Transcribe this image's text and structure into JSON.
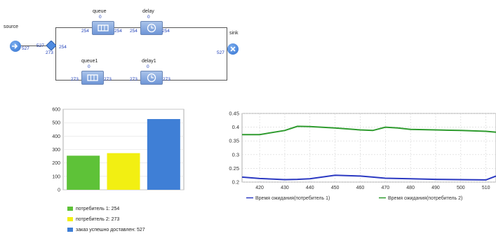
{
  "model": {
    "source": {
      "name": "source",
      "out": "527"
    },
    "select": {
      "in": "527",
      "out_top": "254",
      "out_bottom": "273"
    },
    "queue": {
      "name": "queue",
      "count": "0",
      "in": "254",
      "out": "254"
    },
    "delay": {
      "name": "delay",
      "count": "0",
      "in": "254",
      "out": "254"
    },
    "queue1": {
      "name": "queue1",
      "count": "0",
      "in": "273",
      "out": "273"
    },
    "delay1": {
      "name": "delay1",
      "count": "0",
      "in": "273",
      "out": "273"
    },
    "sink": {
      "name": "sink",
      "in": "527"
    }
  },
  "chart_data": [
    {
      "type": "bar",
      "categories": [
        "потребитель 1",
        "потребитель 2",
        "заказ успешно доставлен"
      ],
      "values": [
        254,
        273,
        527
      ],
      "colors": [
        "#5ec238",
        "#f2ef12",
        "#3f7fd6"
      ],
      "ylim": [
        0,
        600
      ],
      "yticks": [
        "0",
        "100",
        "200",
        "300",
        "400",
        "500",
        "600"
      ],
      "legend": [
        {
          "label": "потребитель 1: 254",
          "color": "#5ec238"
        },
        {
          "label": "потребитель 2: 273",
          "color": "#f2ef12"
        },
        {
          "label": "заказ успешно доставлен: 527",
          "color": "#3f7fd6"
        }
      ],
      "legend_position": "bottom"
    },
    {
      "type": "line",
      "x": [
        413,
        420,
        430,
        435,
        440,
        450,
        460,
        465,
        470,
        475,
        480,
        490,
        500,
        510,
        514
      ],
      "xlim": [
        413,
        514
      ],
      "ylim": [
        0.2,
        0.45
      ],
      "xticks": [
        "420",
        "430",
        "440",
        "450",
        "460",
        "470",
        "480",
        "490",
        "500",
        "510"
      ],
      "yticks": [
        "0.2",
        "0.25",
        "0.3",
        "0.35",
        "0.4",
        "0.45"
      ],
      "grid": true,
      "series": [
        {
          "name": "Время ожидания(потребитель 1)",
          "color": "#2b39c2",
          "values": [
            0.218,
            0.213,
            0.209,
            0.21,
            0.212,
            0.225,
            0.222,
            0.218,
            0.214,
            0.213,
            0.212,
            0.21,
            0.209,
            0.208,
            0.222
          ]
        },
        {
          "name": "Время ожидания(потребитель 2)",
          "color": "#2e9b2e",
          "values": [
            0.373,
            0.373,
            0.388,
            0.403,
            0.402,
            0.397,
            0.39,
            0.388,
            0.4,
            0.397,
            0.392,
            0.39,
            0.388,
            0.385,
            0.382
          ]
        }
      ],
      "legend_position": "bottom"
    }
  ]
}
